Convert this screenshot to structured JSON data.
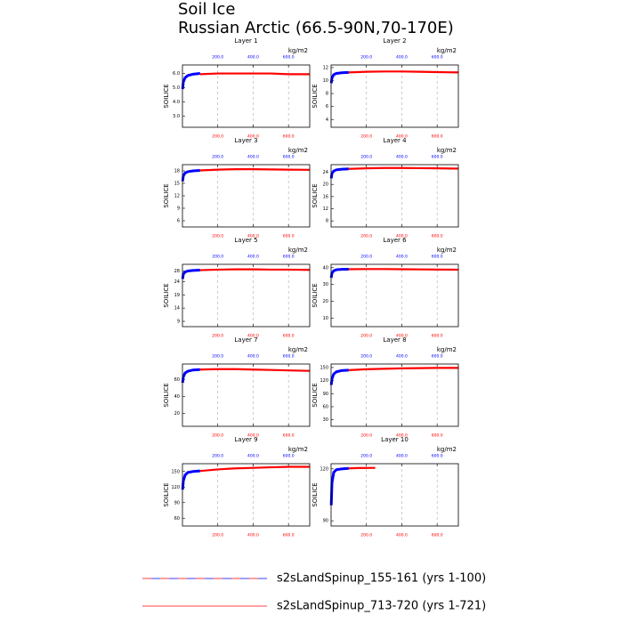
{
  "title": "Soil Ice",
  "subtitle": "Russian Arctic (66.5-90N,70-170E)",
  "legend": [
    {
      "label": "s2sLandSpinup_155-161 (yrs 1-100)",
      "colors": [
        "#ff0000",
        "#0000ff"
      ],
      "style": "dashed"
    },
    {
      "label": "s2sLandSpinup_713-720 (yrs 1-721)",
      "colors": [
        "#ff0000"
      ],
      "style": "solid"
    }
  ],
  "chart_data": [
    {
      "type": "line",
      "title": "Layer 1",
      "ylabel": "SOILICE",
      "units": "kg/m2",
      "grid": true,
      "xlim": [
        0,
        720
      ],
      "xticks": [
        {
          "value": 200,
          "label": "200.0"
        },
        {
          "value": 400,
          "label": "400.0"
        },
        {
          "value": 600,
          "label": "600.0"
        }
      ],
      "x2ticks": [
        {
          "value": 200,
          "label": "200.0"
        },
        {
          "value": 400,
          "label": "400.0"
        },
        {
          "value": 600,
          "label": "600.0"
        }
      ],
      "ylim": [
        2.2,
        6.6
      ],
      "yticks": [
        {
          "value": 3,
          "label": "3.0"
        },
        {
          "value": 4,
          "label": "4.0"
        },
        {
          "value": 5,
          "label": "5.0"
        },
        {
          "value": 6,
          "label": "6.0"
        }
      ],
      "series": [
        {
          "color": "#0000ff",
          "x": [
            1,
            5,
            15,
            30,
            60,
            100
          ],
          "values": [
            4.9,
            5.4,
            5.7,
            5.85,
            5.95,
            6.0
          ]
        },
        {
          "color": "#ff0000",
          "x": [
            100,
            200,
            300,
            400,
            500,
            600,
            720
          ],
          "values": [
            5.95,
            6.0,
            6.0,
            6.0,
            6.0,
            5.95,
            5.95
          ]
        }
      ]
    },
    {
      "type": "line",
      "title": "Layer 2",
      "ylabel": "SOILICE",
      "units": "kg/m2",
      "grid": true,
      "xlim": [
        0,
        720
      ],
      "xticks": [
        {
          "value": 200,
          "label": "200.0"
        },
        {
          "value": 400,
          "label": "400.0"
        },
        {
          "value": 600,
          "label": "600.0"
        }
      ],
      "x2ticks": [
        {
          "value": 200,
          "label": "200.0"
        },
        {
          "value": 400,
          "label": "400.0"
        },
        {
          "value": 600,
          "label": "600.0"
        }
      ],
      "ylim": [
        2.8,
        12.4
      ],
      "yticks": [
        4,
        6,
        8,
        10,
        12
      ],
      "series": [
        {
          "color": "#0000ff",
          "x": [
            1,
            5,
            15,
            30,
            60,
            100
          ],
          "values": [
            9.6,
            10.4,
            10.9,
            11.1,
            11.2,
            11.25
          ]
        },
        {
          "color": "#ff0000",
          "x": [
            100,
            200,
            300,
            400,
            500,
            600,
            720
          ],
          "values": [
            11.25,
            11.35,
            11.4,
            11.4,
            11.35,
            11.3,
            11.25
          ]
        }
      ]
    },
    {
      "type": "line",
      "title": "Layer 3",
      "ylabel": "SOILICE",
      "units": "kg/m2",
      "grid": true,
      "xlim": [
        0,
        720
      ],
      "xticks": [
        {
          "value": 200,
          "label": "200.0"
        },
        {
          "value": 400,
          "label": "400.0"
        },
        {
          "value": 600,
          "label": "600.0"
        }
      ],
      "x2ticks": [
        {
          "value": 200,
          "label": "200.0"
        },
        {
          "value": 400,
          "label": "400.0"
        },
        {
          "value": 600,
          "label": "600.0"
        }
      ],
      "ylim": [
        4.5,
        19.5
      ],
      "yticks": [
        6,
        9,
        12,
        15,
        18
      ],
      "series": [
        {
          "color": "#0000ff",
          "x": [
            1,
            5,
            15,
            30,
            60,
            100
          ],
          "values": [
            15.5,
            16.8,
            17.5,
            17.8,
            18.0,
            18.1
          ]
        },
        {
          "color": "#ff0000",
          "x": [
            100,
            200,
            300,
            400,
            500,
            600,
            720
          ],
          "values": [
            18.1,
            18.3,
            18.4,
            18.4,
            18.35,
            18.3,
            18.25
          ]
        }
      ]
    },
    {
      "type": "line",
      "title": "Layer 4",
      "ylabel": "SOILICE",
      "units": "kg/m2",
      "grid": true,
      "xlim": [
        0,
        720
      ],
      "xticks": [
        {
          "value": 200,
          "label": "200.0"
        },
        {
          "value": 400,
          "label": "400.0"
        },
        {
          "value": 600,
          "label": "600.0"
        }
      ],
      "x2ticks": [
        {
          "value": 200,
          "label": "200.0"
        },
        {
          "value": 400,
          "label": "400.0"
        },
        {
          "value": 600,
          "label": "600.0"
        }
      ],
      "ylim": [
        6,
        26.5
      ],
      "yticks": [
        8,
        12,
        16,
        20,
        24
      ],
      "series": [
        {
          "color": "#0000ff",
          "x": [
            1,
            5,
            15,
            30,
            60,
            100
          ],
          "values": [
            22,
            23.6,
            24.4,
            24.8,
            25.0,
            25.1
          ]
        },
        {
          "color": "#ff0000",
          "x": [
            100,
            200,
            300,
            400,
            500,
            600,
            720
          ],
          "values": [
            25.1,
            25.3,
            25.4,
            25.4,
            25.35,
            25.3,
            25.2
          ]
        }
      ]
    },
    {
      "type": "line",
      "title": "Layer 5",
      "ylabel": "SOILICE",
      "units": "kg/m2",
      "grid": true,
      "xlim": [
        0,
        720
      ],
      "xticks": [
        {
          "value": 200,
          "label": "200.0"
        },
        {
          "value": 400,
          "label": "400.0"
        },
        {
          "value": 600,
          "label": "600.0"
        }
      ],
      "x2ticks": [
        {
          "value": 200,
          "label": "200.0"
        },
        {
          "value": 400,
          "label": "400.0"
        },
        {
          "value": 600,
          "label": "600.0"
        }
      ],
      "ylim": [
        7,
        30.5
      ],
      "yticks": [
        9,
        14,
        19,
        24,
        28
      ],
      "series": [
        {
          "color": "#0000ff",
          "x": [
            1,
            5,
            15,
            30,
            60,
            100
          ],
          "values": [
            25,
            26.8,
            27.6,
            28.0,
            28.2,
            28.3
          ]
        },
        {
          "color": "#ff0000",
          "x": [
            100,
            200,
            300,
            400,
            500,
            600,
            720
          ],
          "values": [
            28.3,
            28.5,
            28.6,
            28.6,
            28.5,
            28.5,
            28.4
          ]
        }
      ]
    },
    {
      "type": "line",
      "title": "Layer 6",
      "ylabel": "SOILICE",
      "units": "kg/m2",
      "grid": true,
      "xlim": [
        0,
        720
      ],
      "xticks": [
        {
          "value": 200,
          "label": "200.0"
        },
        {
          "value": 400,
          "label": "400.0"
        },
        {
          "value": 600,
          "label": "600.0"
        }
      ],
      "x2ticks": [
        {
          "value": 200,
          "label": "200.0"
        },
        {
          "value": 400,
          "label": "400.0"
        },
        {
          "value": 600,
          "label": "600.0"
        }
      ],
      "ylim": [
        5,
        42
      ],
      "yticks": [
        10,
        20,
        30,
        40
      ],
      "series": [
        {
          "color": "#0000ff",
          "x": [
            1,
            5,
            15,
            30,
            60,
            100
          ],
          "values": [
            34,
            36.8,
            38.2,
            38.8,
            39.0,
            39.1
          ]
        },
        {
          "color": "#ff0000",
          "x": [
            100,
            200,
            300,
            400,
            500,
            600,
            720
          ],
          "values": [
            39.1,
            39.2,
            39.2,
            39.1,
            39.0,
            38.9,
            38.8
          ]
        }
      ]
    },
    {
      "type": "line",
      "title": "Layer 7",
      "ylabel": "SOILICE",
      "units": "kg/m2",
      "grid": true,
      "xlim": [
        0,
        720
      ],
      "xticks": [
        {
          "value": 200,
          "label": "200.0"
        },
        {
          "value": 400,
          "label": "400.0"
        },
        {
          "value": 600,
          "label": "600.0"
        }
      ],
      "x2ticks": [
        {
          "value": 200,
          "label": "200.0"
        },
        {
          "value": 400,
          "label": "400.0"
        },
        {
          "value": 600,
          "label": "600.0"
        }
      ],
      "ylim": [
        5,
        78
      ],
      "yticks": [
        20,
        40,
        60
      ],
      "series": [
        {
          "color": "#0000ff",
          "x": [
            1,
            5,
            15,
            30,
            60,
            100
          ],
          "values": [
            56,
            63,
            67.5,
            69.5,
            71,
            71.5
          ]
        },
        {
          "color": "#ff0000",
          "x": [
            100,
            200,
            300,
            400,
            500,
            600,
            720
          ],
          "values": [
            71.5,
            72,
            72,
            71.5,
            71,
            70.5,
            70
          ]
        }
      ]
    },
    {
      "type": "line",
      "title": "Layer 8",
      "ylabel": "SOILICE",
      "units": "kg/m2",
      "grid": true,
      "xlim": [
        0,
        720
      ],
      "xticks": [
        {
          "value": 200,
          "label": "200.0"
        },
        {
          "value": 400,
          "label": "400.0"
        },
        {
          "value": 600,
          "label": "600.0"
        }
      ],
      "x2ticks": [
        {
          "value": 200,
          "label": "200.0"
        },
        {
          "value": 400,
          "label": "400.0"
        },
        {
          "value": 600,
          "label": "600.0"
        }
      ],
      "ylim": [
        15,
        158
      ],
      "yticks": [
        30,
        60,
        90,
        120,
        150
      ],
      "series": [
        {
          "color": "#0000ff",
          "x": [
            1,
            5,
            15,
            30,
            60,
            100
          ],
          "values": [
            110,
            124,
            135,
            140,
            143,
            144
          ]
        },
        {
          "color": "#ff0000",
          "x": [
            100,
            200,
            300,
            400,
            500,
            600,
            720
          ],
          "values": [
            144,
            146,
            147,
            148,
            148.5,
            149,
            149
          ]
        }
      ]
    },
    {
      "type": "line",
      "title": "Layer 9",
      "ylabel": "SOILICE",
      "units": "kg/m2",
      "grid": true,
      "xlim": [
        0,
        720
      ],
      "xticks": [
        {
          "value": 200,
          "label": "200.0"
        },
        {
          "value": 400,
          "label": "400.0"
        },
        {
          "value": 600,
          "label": "600.0"
        }
      ],
      "x2ticks": [
        {
          "value": 200,
          "label": "200.0"
        },
        {
          "value": 400,
          "label": "400.0"
        },
        {
          "value": 600,
          "label": "600.0"
        }
      ],
      "ylim": [
        45,
        165
      ],
      "yticks": [
        60,
        90,
        120,
        150
      ],
      "series": [
        {
          "color": "#0000ff",
          "x": [
            1,
            5,
            15,
            30,
            60,
            100
          ],
          "values": [
            115,
            132,
            143,
            148,
            150,
            151
          ]
        },
        {
          "color": "#ff0000",
          "x": [
            100,
            200,
            300,
            400,
            500,
            600,
            720
          ],
          "values": [
            151,
            154,
            156,
            157,
            158,
            159,
            159
          ]
        }
      ]
    },
    {
      "type": "line",
      "title": "Layer 10",
      "ylabel": "SOILICE",
      "units": "kg/m2",
      "grid": true,
      "xlim": [
        0,
        720
      ],
      "xticks": [
        {
          "value": 200,
          "label": "200.0"
        },
        {
          "value": 400,
          "label": "400.0"
        },
        {
          "value": 600,
          "label": "600.0"
        }
      ],
      "x2ticks": [
        {
          "value": 200,
          "label": "200.0"
        },
        {
          "value": 400,
          "label": "400.0"
        },
        {
          "value": 600,
          "label": "600.0"
        }
      ],
      "ylim": [
        87,
        123
      ],
      "yticks": [
        90,
        120
      ],
      "series": [
        {
          "color": "#0000ff",
          "x": [
            1,
            5,
            15,
            30,
            60,
            100
          ],
          "values": [
            99,
            112,
            118,
            119.5,
            120,
            120.3
          ]
        },
        {
          "color": "#ff0000",
          "x": [
            100,
            150,
            250
          ],
          "values": [
            120.3,
            120.5,
            120.6
          ]
        }
      ]
    }
  ]
}
